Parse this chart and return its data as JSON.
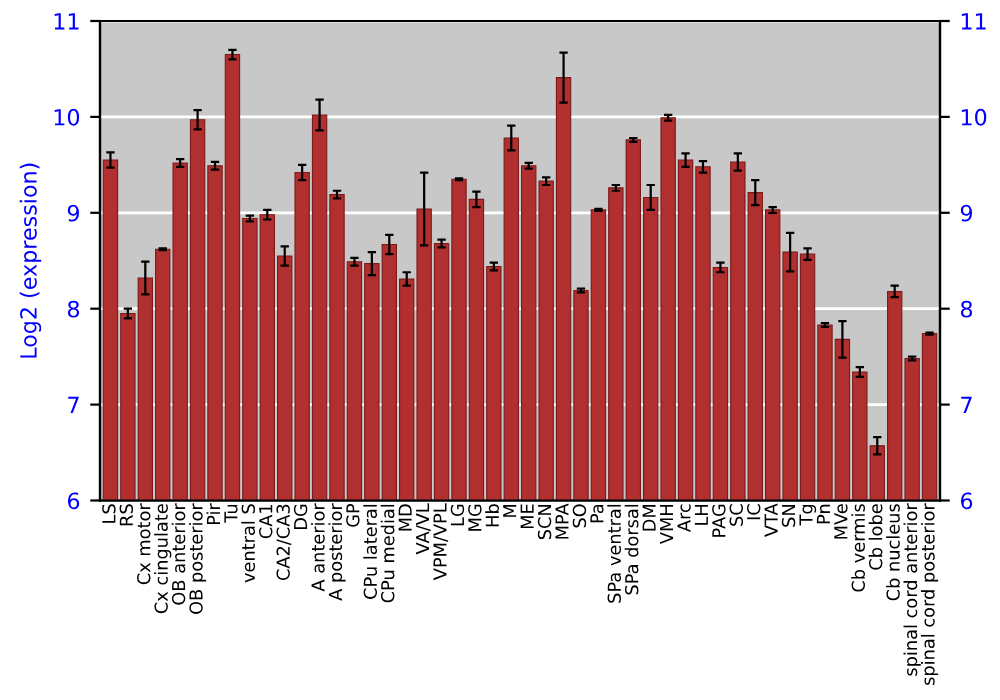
{
  "chart_data": {
    "type": "bar",
    "ylabel": "Log2 (expression)",
    "categories": [
      "LS",
      "RS",
      "Cx motor",
      "Cx cingulate",
      "OB anterior",
      "OB posterior",
      "Pir",
      "Tu",
      "ventral S",
      "CA1",
      "CA2/CA3",
      "DG",
      "A anterior",
      "A posterior",
      "GP",
      "CPu lateral",
      "CPu medial",
      "MD",
      "VA/VL",
      "VPM/VPL",
      "LG",
      "MG",
      "Hb",
      "M",
      "ME",
      "SCN",
      "MPA",
      "SO",
      "Pa",
      "SPa ventral",
      "SPa dorsal",
      "DM",
      "VMH",
      "Arc",
      "LH",
      "PAG",
      "SC",
      "IC",
      "VTA",
      "SN",
      "Tg",
      "Pn",
      "MVe",
      "Cb vermis",
      "Cb lobe",
      "Cb nucleus",
      "spinal cord anterior",
      "spinal cord posterior"
    ],
    "values": [
      9.55,
      7.95,
      8.32,
      8.62,
      9.52,
      9.97,
      9.49,
      10.65,
      8.94,
      8.98,
      8.55,
      9.42,
      10.02,
      9.19,
      8.49,
      8.47,
      8.67,
      8.31,
      9.04,
      8.68,
      9.35,
      9.14,
      8.44,
      9.78,
      9.49,
      9.33,
      10.41,
      8.19,
      9.03,
      9.26,
      9.76,
      9.16,
      9.99,
      9.55,
      9.48,
      8.43,
      9.53,
      9.21,
      9.03,
      8.59,
      8.57,
      7.83,
      7.68,
      7.34,
      6.57,
      8.18,
      7.48,
      7.74
    ],
    "errors": [
      0.08,
      0.05,
      0.17,
      0.01,
      0.04,
      0.1,
      0.04,
      0.05,
      0.03,
      0.05,
      0.1,
      0.08,
      0.16,
      0.04,
      0.04,
      0.12,
      0.1,
      0.07,
      0.38,
      0.04,
      0.01,
      0.08,
      0.04,
      0.13,
      0.03,
      0.04,
      0.26,
      0.02,
      0.01,
      0.03,
      0.02,
      0.13,
      0.03,
      0.07,
      0.06,
      0.05,
      0.09,
      0.13,
      0.03,
      0.2,
      0.06,
      0.02,
      0.19,
      0.05,
      0.09,
      0.06,
      0.02,
      0.01
    ],
    "color": "#b22f2f",
    "ylim": [
      6,
      11
    ],
    "yticks": [
      6,
      7,
      8,
      9,
      10,
      11
    ],
    "y2lim": [
      6,
      11
    ],
    "y2ticks": [
      6,
      7,
      8,
      9,
      10,
      11
    ],
    "grid": "y"
  }
}
